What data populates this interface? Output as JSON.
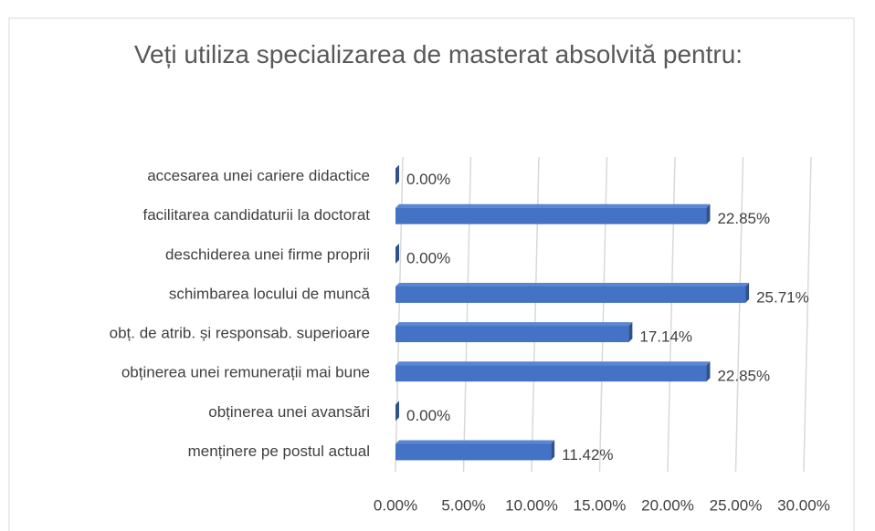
{
  "chart_data": {
    "type": "bar",
    "orientation": "horizontal",
    "title": "Veți utiliza specializarea de masterat absolvită pentru:",
    "categories": [
      "accesarea unei cariere didactice",
      "facilitarea candidaturii la doctorat",
      "deschiderea unei firme proprii",
      "schimbarea locului de muncă",
      "obț. de atrib. și responsab. superioare",
      "obținerea unei remunerații mai bune",
      "obținerea unei avansări",
      "menținere pe postul actual"
    ],
    "values": [
      0,
      22.85,
      0,
      25.71,
      17.14,
      22.85,
      0,
      11.42
    ],
    "value_labels": [
      "0.00%",
      "22.85%",
      "0.00%",
      "25.71%",
      "17.14%",
      "22.85%",
      "0.00%",
      "11.42%"
    ],
    "color": "#4472c4",
    "xlim": [
      0,
      30
    ],
    "xticks": [
      {
        "value": 0,
        "label": "0.00%"
      },
      {
        "value": 5,
        "label": "5.00%"
      },
      {
        "value": 10,
        "label": "10.00%"
      },
      {
        "value": 15,
        "label": "15.00%"
      },
      {
        "value": 20,
        "label": "20.00%"
      },
      {
        "value": 25,
        "label": "25.00%"
      },
      {
        "value": 30,
        "label": "30.00%"
      }
    ],
    "grid": true
  }
}
